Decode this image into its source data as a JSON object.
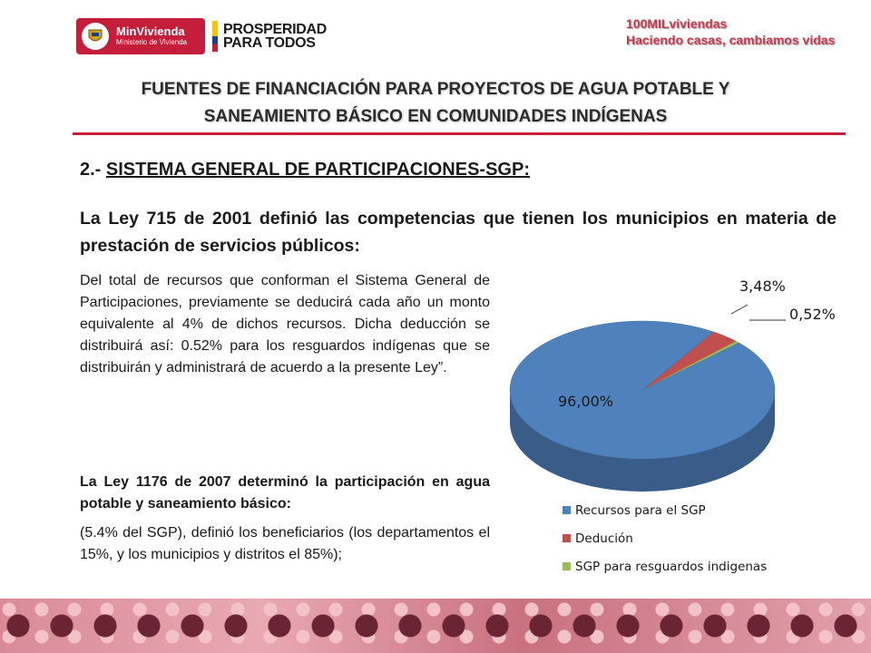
{
  "header": {
    "minvivienda_logo": {
      "name": "MinVivienda",
      "subtitle": "Ministerio de Vivienda"
    },
    "prosperidad_logo": {
      "line1": "PROSPERIDAD",
      "line2": "PARA TODOS"
    },
    "tagline": {
      "line1": "100MILviviendas",
      "line2": "Haciendo casas, cambiamos vidas"
    }
  },
  "title": {
    "line1": "FUENTES DE FINANCIACIÓN PARA PROYECTOS DE AGUA POTABLE Y",
    "line2": "SANEAMIENTO BÁSICO EN COMUNIDADES INDÍGENAS"
  },
  "section": {
    "number": "2.-",
    "heading": "SISTEMA GENERAL DE PARTICIPACIONES-SGP:"
  },
  "intro": "La Ley 715 de 2001 definió las competencias que tienen los municipios en materia de prestación de servicios públicos:",
  "body": "Del total de recursos que conforman el Sistema General de Participaciones, previamente se deducirá cada año un monto equivalente al 4% de dichos recursos. Dicha deducción se distribuirá así: 0.52% para los resguardos indígenas que se distribuirán y administrará de acuerdo a la presente Ley”.",
  "law_heading": "La Ley 1176 de 2007 determinó la participación en agua potable y saneamiento básico:",
  "law_text": "(5.4% del SGP), definió los beneficiarios (los departamentos el 15%, y los municipios y distritos el 85%);",
  "chart_data": {
    "type": "pie",
    "categories": [
      "Recursos para el SGP",
      "Dedución",
      "SGP para resguardos indigenas"
    ],
    "values": [
      96.0,
      3.48,
      0.52
    ],
    "labels": [
      "96,00%",
      "3,48%",
      "0,52%"
    ],
    "colors": [
      "#4f81bd",
      "#c0504d",
      "#9bbb59"
    ],
    "legend_position": "bottom",
    "style": "3d"
  }
}
